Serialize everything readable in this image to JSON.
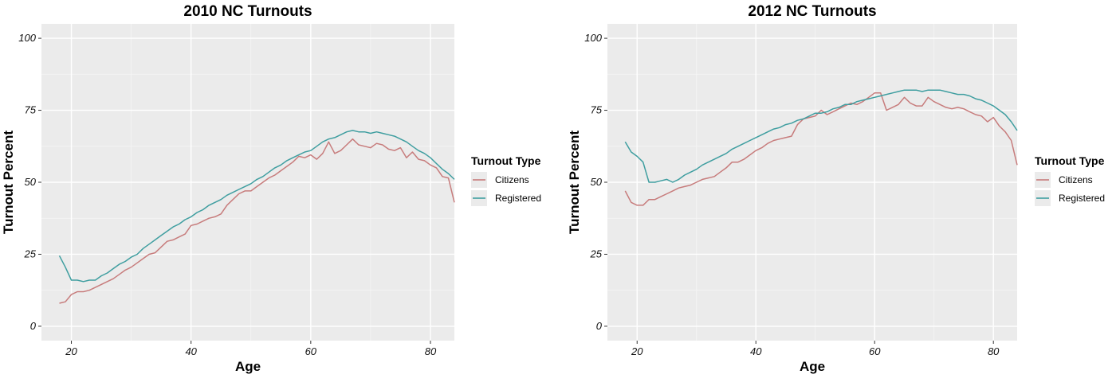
{
  "chart_data": [
    {
      "type": "line",
      "title": "2010 NC Turnouts",
      "xlabel": "Age",
      "ylabel": "Turnout Percent",
      "xlim": [
        15,
        84
      ],
      "ylim": [
        -5,
        105
      ],
      "x_ticks": [
        20,
        40,
        60,
        80
      ],
      "y_ticks": [
        0,
        25,
        50,
        75,
        100
      ],
      "grid": true,
      "legend_position": "right",
      "legend_title": "Turnout Type",
      "colors": {
        "Citizens": "#c77c7c",
        "Registered": "#3f9ea0"
      },
      "series": [
        {
          "name": "Citizens",
          "x": [
            18,
            19,
            20,
            21,
            22,
            23,
            24,
            25,
            26,
            27,
            28,
            29,
            30,
            31,
            32,
            33,
            34,
            35,
            36,
            37,
            38,
            39,
            40,
            41,
            42,
            43,
            44,
            45,
            46,
            47,
            48,
            49,
            50,
            51,
            52,
            53,
            54,
            55,
            56,
            57,
            58,
            59,
            60,
            61,
            62,
            63,
            64,
            65,
            66,
            67,
            68,
            69,
            70,
            71,
            72,
            73,
            74,
            75,
            76,
            77,
            78,
            79,
            80,
            81,
            82,
            83,
            84
          ],
          "values": [
            8,
            8.5,
            11,
            12,
            12,
            12.5,
            13.5,
            14.5,
            15.5,
            16.5,
            18,
            19.5,
            20.5,
            22,
            23.5,
            25,
            25.5,
            27.5,
            29.5,
            30,
            31,
            32,
            35,
            35.5,
            36.5,
            37.5,
            38,
            39,
            42,
            44,
            46,
            47,
            47,
            48.5,
            50,
            51.5,
            52.5,
            54,
            55.5,
            57,
            59,
            58.5,
            59.5,
            58,
            60,
            64,
            60,
            61,
            63,
            65,
            63,
            62.5,
            62,
            63.5,
            63,
            61.5,
            61,
            62,
            58.5,
            60.5,
            58,
            57.5,
            56,
            55,
            52,
            51.5,
            43
          ]
        },
        {
          "name": "Registered",
          "x": [
            18,
            19,
            20,
            21,
            22,
            23,
            24,
            25,
            26,
            27,
            28,
            29,
            30,
            31,
            32,
            33,
            34,
            35,
            36,
            37,
            38,
            39,
            40,
            41,
            42,
            43,
            44,
            45,
            46,
            47,
            48,
            49,
            50,
            51,
            52,
            53,
            54,
            55,
            56,
            57,
            58,
            59,
            60,
            61,
            62,
            63,
            64,
            65,
            66,
            67,
            68,
            69,
            70,
            71,
            72,
            73,
            74,
            75,
            76,
            77,
            78,
            79,
            80,
            81,
            82,
            83,
            84
          ],
          "values": [
            24.5,
            20.5,
            16,
            16,
            15.5,
            16,
            16,
            17.5,
            18.5,
            20,
            21.5,
            22.5,
            24,
            25,
            27,
            28.5,
            30,
            31.5,
            33,
            34.5,
            35.5,
            37,
            38,
            39.5,
            40.5,
            42,
            43,
            44,
            45.5,
            46.5,
            47.5,
            48.5,
            49.5,
            51,
            52,
            53.5,
            55,
            56,
            57.5,
            58.5,
            59.5,
            60.5,
            61,
            62.5,
            64,
            65,
            65.5,
            66.5,
            67.5,
            68,
            67.5,
            67.5,
            67,
            67.5,
            67,
            66.5,
            66,
            65,
            64,
            62.5,
            61,
            60,
            58.5,
            56.5,
            54.5,
            53,
            51
          ]
        }
      ]
    },
    {
      "type": "line",
      "title": "2012 NC Turnouts",
      "xlabel": "Age",
      "ylabel": "Turnout Percent",
      "xlim": [
        15,
        84
      ],
      "ylim": [
        -5,
        105
      ],
      "x_ticks": [
        20,
        40,
        60,
        80
      ],
      "y_ticks": [
        0,
        25,
        50,
        75,
        100
      ],
      "grid": true,
      "legend_position": "right",
      "legend_title": "Turnout Type",
      "colors": {
        "Citizens": "#c77c7c",
        "Registered": "#3f9ea0"
      },
      "series": [
        {
          "name": "Citizens",
          "x": [
            18,
            19,
            20,
            21,
            22,
            23,
            24,
            25,
            26,
            27,
            28,
            29,
            30,
            31,
            32,
            33,
            34,
            35,
            36,
            37,
            38,
            39,
            40,
            41,
            42,
            43,
            44,
            45,
            46,
            47,
            48,
            49,
            50,
            51,
            52,
            53,
            54,
            55,
            56,
            57,
            58,
            59,
            60,
            61,
            62,
            63,
            64,
            65,
            66,
            67,
            68,
            69,
            70,
            71,
            72,
            73,
            74,
            75,
            76,
            77,
            78,
            79,
            80,
            81,
            82,
            83,
            84
          ],
          "values": [
            47,
            43,
            42,
            42,
            44,
            44,
            45,
            46,
            47,
            48,
            48.5,
            49,
            50,
            51,
            51.5,
            52,
            53.5,
            55,
            57,
            57,
            58,
            59.5,
            61,
            62,
            63.5,
            64.5,
            65,
            65.5,
            66,
            70,
            72,
            72.5,
            73,
            75,
            73.5,
            74.5,
            75.5,
            76.5,
            77.5,
            77,
            78,
            79.5,
            81,
            81,
            75,
            76,
            77,
            79.5,
            77.5,
            76.5,
            76.5,
            79.5,
            78,
            77,
            76,
            75.5,
            76,
            75.5,
            74.5,
            73.5,
            73,
            71,
            72.5,
            69.5,
            67.5,
            64.5,
            56
          ]
        },
        {
          "name": "Registered",
          "x": [
            18,
            19,
            20,
            21,
            22,
            23,
            24,
            25,
            26,
            27,
            28,
            29,
            30,
            31,
            32,
            33,
            34,
            35,
            36,
            37,
            38,
            39,
            40,
            41,
            42,
            43,
            44,
            45,
            46,
            47,
            48,
            49,
            50,
            51,
            52,
            53,
            54,
            55,
            56,
            57,
            58,
            59,
            60,
            61,
            62,
            63,
            64,
            65,
            66,
            67,
            68,
            69,
            70,
            71,
            72,
            73,
            74,
            75,
            76,
            77,
            78,
            79,
            80,
            81,
            82,
            83,
            84
          ],
          "values": [
            64,
            60.5,
            59,
            57,
            50,
            50,
            50.5,
            51,
            50,
            51,
            52.5,
            53.5,
            54.5,
            56,
            57,
            58,
            59,
            60,
            61.5,
            62.5,
            63.5,
            64.5,
            65.5,
            66.5,
            67.5,
            68.5,
            69,
            70,
            70.5,
            71.5,
            72,
            73,
            74,
            74,
            74.5,
            75.5,
            76,
            77,
            77,
            78,
            78.5,
            79,
            79.5,
            80,
            80.5,
            81,
            81.5,
            82,
            82,
            82,
            81.5,
            82,
            82,
            82,
            81.5,
            81,
            80.5,
            80.5,
            80,
            79,
            78.5,
            77.5,
            76.5,
            75,
            73.5,
            71,
            68
          ]
        }
      ]
    }
  ]
}
